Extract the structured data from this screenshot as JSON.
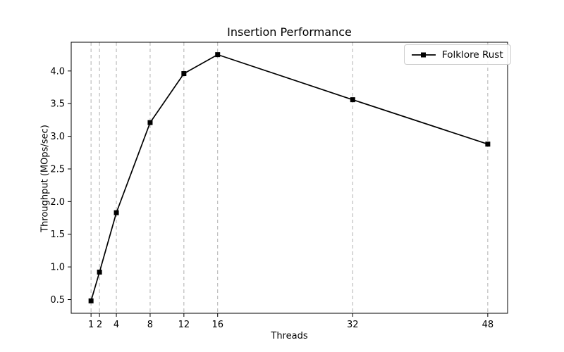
{
  "chart_data": {
    "type": "line",
    "title": "Insertion Performance",
    "xlabel": "Threads",
    "ylabel": "Throughput (MOps/sec)",
    "x_ticks": [
      1,
      2,
      4,
      8,
      12,
      16,
      32,
      48
    ],
    "y_ticks": [
      0.5,
      1.0,
      1.5,
      2.0,
      2.5,
      3.0,
      3.5,
      4.0
    ],
    "xlim": [
      -1.35,
      50.35
    ],
    "ylim": [
      0.29,
      4.44
    ],
    "grid": "vertical-dashed-at-x-ticks",
    "legend_position": "upper right",
    "series": [
      {
        "name": "Folklore Rust",
        "color": "#000000",
        "marker": "square",
        "x": [
          1,
          2,
          4,
          8,
          12,
          16,
          32,
          48
        ],
        "y": [
          0.48,
          0.92,
          1.83,
          3.21,
          3.96,
          4.25,
          3.56,
          2.88
        ]
      }
    ]
  },
  "colors": {
    "line": "#000000",
    "grid": "#b0b0b0",
    "axis": "#000000",
    "text": "#000000",
    "background": "#ffffff",
    "legend_border": "#cccccc"
  }
}
